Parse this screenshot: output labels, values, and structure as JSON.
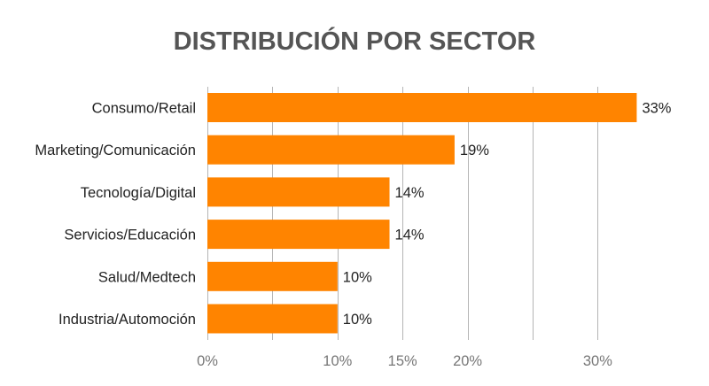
{
  "chart_data": {
    "type": "bar",
    "orientation": "horizontal",
    "title": "DISTRIBUCIÓN POR SECTOR",
    "categories": [
      "Consumo/Retail",
      "Marketing/Comunicación",
      "Tecnología/Digital",
      "Servicios/Educación",
      "Salud/Medtech",
      "Industria/Automoción"
    ],
    "values": [
      33,
      19,
      14,
      14,
      10,
      10
    ],
    "value_labels": [
      "33%",
      "19%",
      "14%",
      "14%",
      "10%",
      "10%"
    ],
    "xlim": [
      0,
      35
    ],
    "grid_values": [
      0,
      5,
      10,
      15,
      20,
      25,
      30
    ],
    "tick_values": [
      0,
      10,
      15,
      20,
      30
    ],
    "tick_labels": [
      "0%",
      "10%",
      "15%",
      "20%",
      "30%"
    ],
    "grid": true,
    "legend": "none",
    "bar_color": "#ff8400"
  }
}
